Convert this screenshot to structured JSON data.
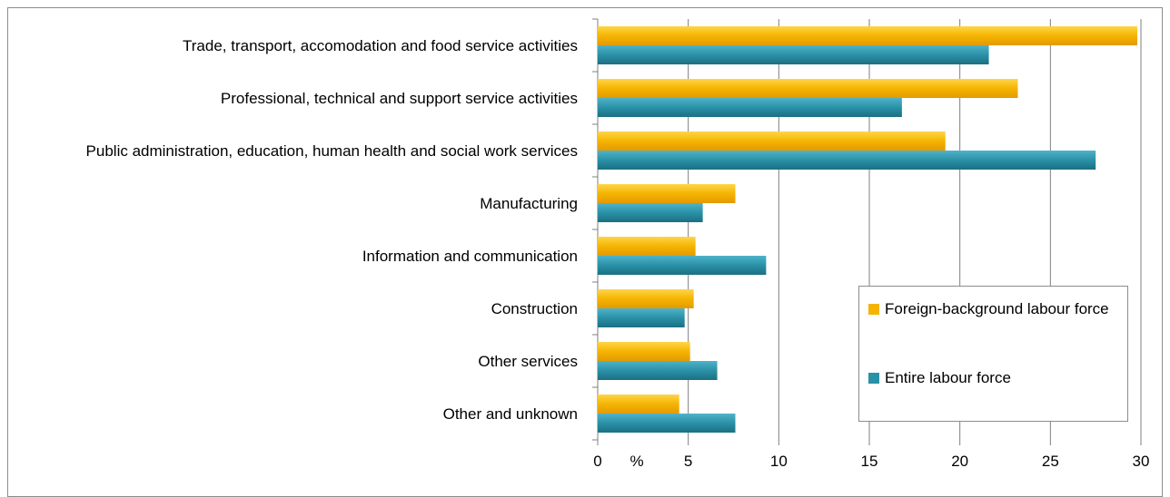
{
  "chart_data": {
    "type": "bar",
    "orientation": "horizontal",
    "categories": [
      "Trade, transport, accomodation and food service activities",
      "Professional, technical and support service activities",
      "Public administration, education, human health and social work services",
      "Manufacturing",
      "Information and communication",
      "Construction",
      "Other services",
      "Other and unknown"
    ],
    "series": [
      {
        "name": "Foreign-background labour force",
        "color": "#f5b400",
        "values": [
          29.8,
          23.2,
          19.2,
          7.6,
          5.4,
          5.3,
          5.1,
          4.5
        ]
      },
      {
        "name": "Entire labour force",
        "color": "#2a91a8",
        "values": [
          21.6,
          16.8,
          27.5,
          5.8,
          9.3,
          4.8,
          6.6,
          7.6
        ]
      }
    ],
    "xlabel": "%",
    "xlim": [
      0,
      30
    ],
    "xticks": [
      "0",
      "5",
      "10",
      "15",
      "20",
      "25",
      "30"
    ],
    "grid": "vertical",
    "legend_position": "bottom-right"
  }
}
